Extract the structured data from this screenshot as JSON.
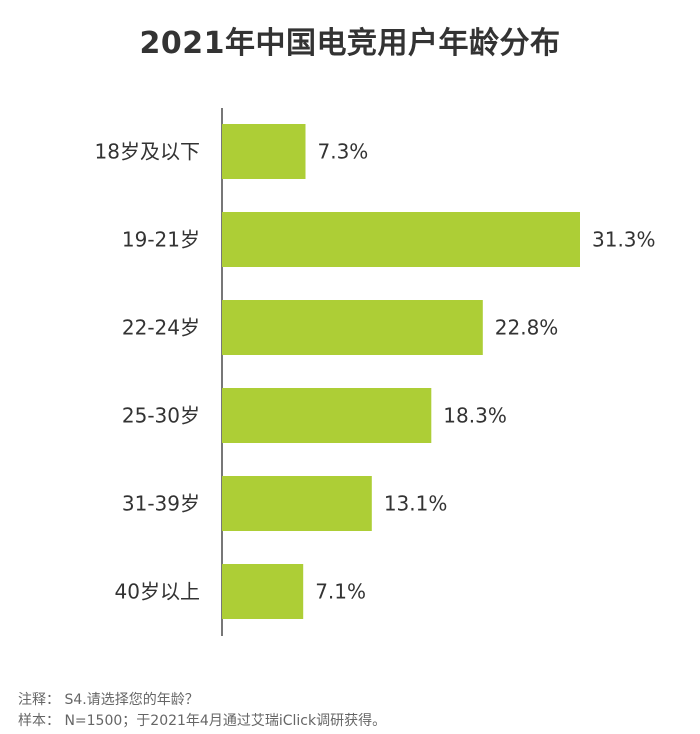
{
  "chart_data": {
    "type": "bar",
    "orientation": "horizontal",
    "title": "2021年中国电竞用户年龄分布",
    "categories": [
      "18岁及以下",
      "19-21岁",
      "22-24岁",
      "25-30岁",
      "31-39岁",
      "40岁以上"
    ],
    "values": [
      7.3,
      31.3,
      22.8,
      18.3,
      13.1,
      7.1
    ],
    "value_labels": [
      "7.3%",
      "31.3%",
      "22.8%",
      "18.3%",
      "13.1%",
      "7.1%"
    ],
    "unit": "%",
    "xlim": [
      0,
      31.3
    ],
    "xlabel": "",
    "ylabel": "",
    "grid": false,
    "legend": "none",
    "bar_color": "#adce36"
  },
  "notes": {
    "note": "注释： S4.请选择您的年龄？",
    "sample": "样本： N=1500；于2021年4月通过艾瑞iClick调研获得。"
  }
}
